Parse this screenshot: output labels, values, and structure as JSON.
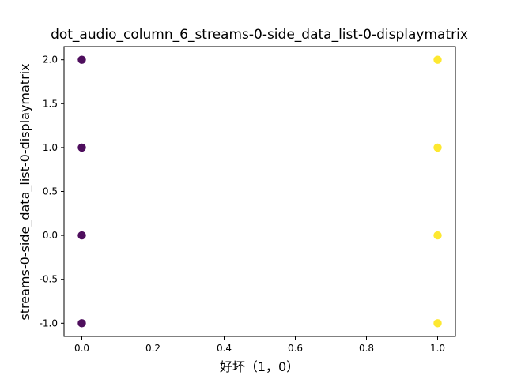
{
  "chart_data": {
    "type": "scatter",
    "title": "dot_audio_column_6_streams-0-side_data_list-0-displaymatrix",
    "xlabel": "好坏（1，0）",
    "ylabel": "streams-0-side_data_list-0-displaymatrix",
    "xlim": [
      -0.05,
      1.05
    ],
    "ylim": [
      -1.15,
      2.15
    ],
    "xticks": [
      {
        "value": 0.0,
        "label": "0.0"
      },
      {
        "value": 0.2,
        "label": "0.2"
      },
      {
        "value": 0.4,
        "label": "0.4"
      },
      {
        "value": 0.6,
        "label": "0.6"
      },
      {
        "value": 0.8,
        "label": "0.8"
      },
      {
        "value": 1.0,
        "label": "1.0"
      }
    ],
    "yticks": [
      {
        "value": -1.0,
        "label": "-1.0"
      },
      {
        "value": -0.5,
        "label": "-0.5"
      },
      {
        "value": 0.0,
        "label": "0.0"
      },
      {
        "value": 0.5,
        "label": "0.5"
      },
      {
        "value": 1.0,
        "label": "1.0"
      },
      {
        "value": 1.5,
        "label": "1.5"
      },
      {
        "value": 2.0,
        "label": "2.0"
      }
    ],
    "grid": false,
    "series": [
      {
        "color": "#440154",
        "x": [
          0,
          0,
          0,
          0
        ],
        "y": [
          2.0,
          1.0,
          0.0,
          -1.0
        ]
      },
      {
        "color": "#fde725",
        "x": [
          1,
          1,
          1,
          1
        ],
        "y": [
          2.0,
          1.0,
          0.0,
          -1.0
        ]
      }
    ]
  }
}
